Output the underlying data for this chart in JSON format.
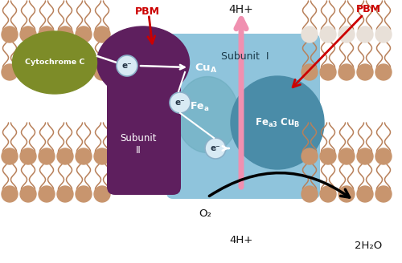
{
  "bg_color": "#ffffff",
  "membrane_color_left": "#c8956e",
  "membrane_color_right_top": "#e8e0d8",
  "membrane_color_right_bot": "#c8956e",
  "membrane_tail_color": "#b8805a",
  "subunit1_color": "#8fc4dc",
  "subunit2_color": "#5e1f5e",
  "cytochrome_color": "#7d8c28",
  "fea3_cub_color": "#4a8ca8",
  "fea_blob_color": "#6aabbc",
  "pbm_color": "#cc0000",
  "pink_arrow_color": "#f090b0",
  "black_color": "#111111",
  "white_color": "#ffffff",
  "electron_fill": "#d8eaf4",
  "electron_edge": "#8ab0c8",
  "subunit1_label": "Subunit  I",
  "subunit2_label": "Subunit\nII",
  "cytochrome_label": "Cytochrome C",
  "pbm_label": "PBM",
  "o2_label": "O₂",
  "4hplus_top": "4H+",
  "4hplus_bot": "4H+",
  "2h2o_label": "2H₂O"
}
